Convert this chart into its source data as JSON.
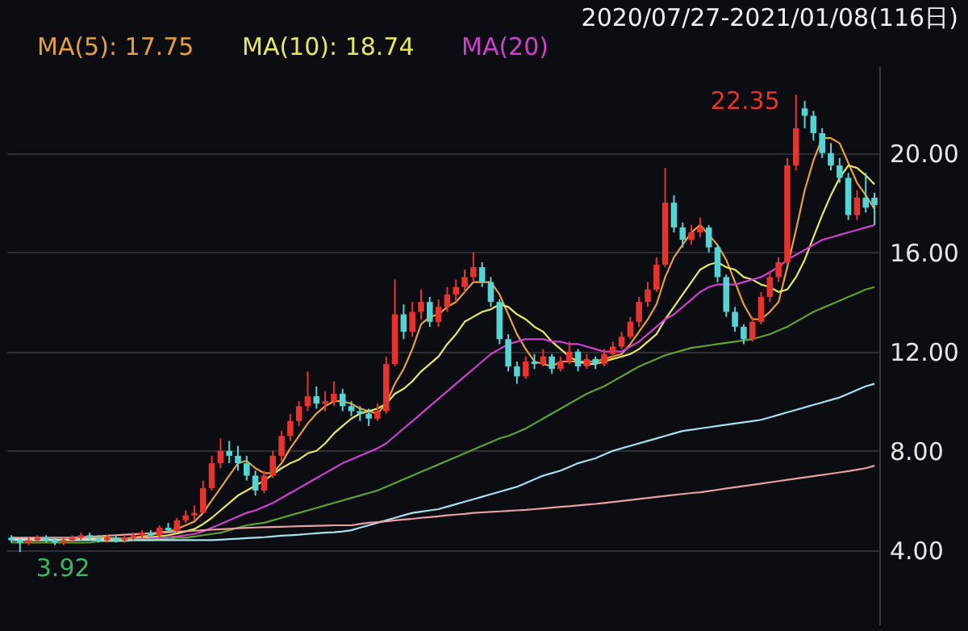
{
  "chart_data": {
    "type": "candlestick",
    "title": "2020/07/27-2021/01/08(116日)",
    "categories": [
      null,
      null,
      null,
      null,
      null,
      null,
      null,
      null,
      null,
      null,
      null,
      null,
      null,
      null,
      null,
      null,
      null,
      null,
      null,
      null,
      null,
      null,
      null,
      null,
      null,
      null,
      null,
      null,
      null,
      null,
      null,
      null,
      null,
      null,
      null,
      null,
      null,
      null,
      null,
      null,
      null,
      null,
      null,
      null,
      null,
      null,
      null,
      null,
      null,
      null,
      null,
      null,
      null,
      null,
      null,
      null,
      null,
      null,
      null,
      null,
      null,
      null,
      null,
      null,
      null,
      null,
      null,
      null,
      null,
      null,
      null,
      null,
      null,
      null,
      null,
      null,
      null,
      null,
      null,
      null,
      null,
      null,
      null,
      null,
      null,
      null,
      null,
      null,
      null,
      null,
      null,
      null,
      null,
      null,
      null,
      null,
      null,
      null,
      null,
      null
    ],
    "ohlc": [
      [
        4.5,
        4.6,
        4.3,
        4.4
      ],
      [
        4.4,
        4.5,
        3.92,
        4.3
      ],
      [
        4.3,
        4.5,
        4.2,
        4.4
      ],
      [
        4.4,
        4.6,
        4.3,
        4.5
      ],
      [
        4.5,
        4.6,
        4.3,
        4.4
      ],
      [
        4.4,
        4.5,
        4.2,
        4.3
      ],
      [
        4.3,
        4.5,
        4.2,
        4.4
      ],
      [
        4.4,
        4.6,
        4.3,
        4.5
      ],
      [
        4.5,
        4.7,
        4.4,
        4.6
      ],
      [
        4.6,
        4.7,
        4.4,
        4.5
      ],
      [
        4.5,
        4.6,
        4.3,
        4.4
      ],
      [
        4.4,
        4.6,
        4.3,
        4.5
      ],
      [
        4.5,
        4.6,
        4.3,
        4.4
      ],
      [
        4.4,
        4.6,
        4.3,
        4.5
      ],
      [
        4.5,
        4.7,
        4.4,
        4.6
      ],
      [
        4.6,
        4.8,
        4.5,
        4.7
      ],
      [
        4.7,
        4.8,
        4.5,
        4.6
      ],
      [
        4.6,
        5.0,
        4.5,
        4.9
      ],
      [
        4.9,
        5.1,
        4.7,
        4.8
      ],
      [
        4.8,
        5.3,
        4.7,
        5.2
      ],
      [
        5.2,
        5.6,
        5.1,
        5.4
      ],
      [
        5.4,
        5.8,
        5.2,
        5.5
      ],
      [
        5.5,
        6.8,
        5.5,
        6.5
      ],
      [
        6.5,
        7.8,
        6.4,
        7.5
      ],
      [
        7.5,
        8.5,
        7.3,
        8.0
      ],
      [
        8.0,
        8.4,
        7.5,
        7.8
      ],
      [
        7.8,
        8.2,
        7.2,
        7.5
      ],
      [
        7.5,
        7.8,
        6.8,
        7.0
      ],
      [
        7.0,
        7.2,
        6.2,
        6.4
      ],
      [
        6.4,
        7.2,
        6.3,
        7.0
      ],
      [
        7.0,
        8.0,
        6.9,
        7.8
      ],
      [
        7.8,
        8.8,
        7.6,
        8.6
      ],
      [
        8.6,
        9.5,
        8.4,
        9.2
      ],
      [
        9.2,
        10.0,
        9.0,
        9.8
      ],
      [
        9.8,
        11.2,
        9.6,
        10.2
      ],
      [
        10.2,
        10.6,
        9.7,
        9.9
      ],
      [
        9.9,
        10.4,
        9.6,
        10.0
      ],
      [
        10.0,
        10.8,
        9.8,
        10.3
      ],
      [
        10.3,
        10.5,
        9.6,
        9.8
      ],
      [
        9.8,
        10.0,
        9.4,
        9.6
      ],
      [
        9.6,
        9.8,
        9.2,
        9.5
      ],
      [
        9.5,
        9.7,
        9.0,
        9.3
      ],
      [
        9.3,
        9.9,
        9.2,
        9.6
      ],
      [
        9.6,
        11.8,
        9.5,
        11.5
      ],
      [
        11.5,
        14.9,
        11.4,
        13.5
      ],
      [
        13.5,
        13.9,
        12.5,
        12.8
      ],
      [
        12.8,
        14.0,
        12.6,
        13.6
      ],
      [
        13.6,
        14.5,
        13.3,
        14.0
      ],
      [
        14.0,
        14.2,
        13.0,
        13.2
      ],
      [
        13.2,
        14.1,
        13.0,
        13.8
      ],
      [
        13.8,
        14.6,
        13.6,
        14.3
      ],
      [
        14.3,
        14.9,
        14.0,
        14.6
      ],
      [
        14.6,
        15.3,
        14.4,
        15.0
      ],
      [
        15.0,
        16.0,
        14.8,
        15.4
      ],
      [
        15.4,
        15.6,
        14.6,
        14.8
      ],
      [
        14.8,
        15.0,
        13.8,
        14.0
      ],
      [
        14.0,
        14.1,
        12.3,
        12.5
      ],
      [
        12.5,
        12.7,
        11.2,
        11.4
      ],
      [
        11.4,
        11.6,
        10.7,
        11.0
      ],
      [
        11.0,
        11.8,
        10.9,
        11.6
      ],
      [
        11.6,
        11.9,
        11.3,
        11.5
      ],
      [
        11.5,
        12.1,
        11.4,
        11.8
      ],
      [
        11.8,
        11.9,
        11.1,
        11.3
      ],
      [
        11.3,
        11.8,
        11.2,
        11.6
      ],
      [
        11.6,
        12.4,
        11.5,
        12.0
      ],
      [
        12.0,
        12.1,
        11.2,
        11.4
      ],
      [
        11.4,
        11.9,
        11.3,
        11.7
      ],
      [
        11.7,
        11.8,
        11.3,
        11.5
      ],
      [
        11.5,
        12.1,
        11.4,
        11.9
      ],
      [
        11.9,
        12.4,
        11.8,
        12.2
      ],
      [
        12.2,
        12.8,
        12.1,
        12.6
      ],
      [
        12.6,
        13.4,
        12.5,
        13.2
      ],
      [
        13.2,
        14.2,
        13.0,
        14.0
      ],
      [
        14.0,
        14.8,
        13.8,
        14.5
      ],
      [
        14.5,
        15.8,
        14.4,
        15.5
      ],
      [
        15.5,
        19.4,
        15.4,
        18.0
      ],
      [
        18.0,
        18.3,
        16.8,
        17.0
      ],
      [
        17.0,
        17.2,
        16.2,
        16.5
      ],
      [
        16.5,
        17.1,
        16.3,
        16.8
      ],
      [
        16.8,
        17.4,
        16.6,
        17.0
      ],
      [
        17.0,
        17.1,
        16.0,
        16.2
      ],
      [
        16.2,
        16.3,
        14.8,
        15.0
      ],
      [
        15.0,
        15.1,
        13.4,
        13.6
      ],
      [
        13.6,
        13.8,
        12.8,
        13.0
      ],
      [
        13.0,
        13.1,
        12.3,
        12.5
      ],
      [
        12.5,
        13.4,
        12.4,
        13.2
      ],
      [
        13.2,
        14.4,
        13.1,
        14.2
      ],
      [
        14.2,
        15.2,
        14.0,
        15.0
      ],
      [
        15.0,
        15.8,
        14.8,
        15.6
      ],
      [
        15.6,
        19.8,
        15.5,
        19.5
      ],
      [
        19.5,
        22.35,
        19.3,
        21.0
      ],
      [
        21.8,
        22.1,
        21.0,
        21.5
      ],
      [
        21.5,
        21.7,
        20.5,
        20.8
      ],
      [
        20.8,
        21.0,
        19.8,
        20.0
      ],
      [
        20.0,
        20.4,
        19.3,
        19.5
      ],
      [
        19.5,
        19.8,
        18.8,
        19.0
      ],
      [
        19.0,
        19.2,
        17.3,
        17.5
      ],
      [
        17.5,
        18.5,
        17.3,
        18.2
      ],
      [
        18.2,
        19.2,
        17.6,
        17.8
      ],
      [
        18.2,
        18.4,
        17.1,
        17.9
      ]
    ],
    "series": [
      {
        "name": "MA(5): 17.75",
        "type": "line",
        "color": "#e8a03a",
        "values": [
          4.5,
          4.45,
          4.4,
          4.4,
          4.4,
          4.4,
          4.4,
          4.4,
          4.45,
          4.5,
          4.5,
          4.5,
          4.45,
          4.45,
          4.5,
          4.55,
          4.6,
          4.7,
          4.75,
          4.85,
          5.0,
          5.15,
          5.5,
          6.0,
          6.5,
          7.0,
          7.5,
          7.6,
          7.3,
          7.1,
          7.1,
          7.5,
          8.1,
          8.6,
          9.1,
          9.5,
          9.8,
          10.0,
          10.0,
          9.9,
          9.7,
          9.6,
          9.5,
          9.9,
          10.7,
          11.3,
          12.1,
          13.1,
          13.4,
          13.5,
          13.8,
          14.0,
          14.4,
          14.8,
          14.8,
          14.8,
          14.3,
          13.5,
          12.7,
          12.1,
          11.6,
          11.5,
          11.4,
          11.6,
          11.6,
          11.6,
          11.6,
          11.6,
          11.7,
          11.8,
          11.9,
          12.3,
          12.8,
          13.3,
          13.9,
          15.0,
          15.8,
          16.3,
          16.8,
          17.1,
          16.7,
          16.3,
          15.7,
          14.8,
          13.9,
          13.3,
          13.3,
          13.6,
          14.0,
          15.4,
          16.9,
          18.5,
          19.7,
          20.6,
          20.6,
          20.4,
          19.6,
          18.8,
          18.3,
          17.75
        ]
      },
      {
        "name": "MA(10): 18.74",
        "type": "line",
        "color": "#e8e860",
        "values": [
          4.45,
          4.45,
          4.45,
          4.44,
          4.43,
          4.42,
          4.42,
          4.42,
          4.43,
          4.44,
          4.45,
          4.46,
          4.46,
          4.47,
          4.48,
          4.5,
          4.52,
          4.56,
          4.6,
          4.67,
          4.75,
          4.85,
          5.05,
          5.3,
          5.6,
          5.9,
          6.2,
          6.4,
          6.6,
          6.8,
          7.05,
          7.3,
          7.5,
          7.65,
          7.9,
          8.0,
          8.3,
          8.7,
          9.0,
          9.3,
          9.5,
          9.6,
          9.7,
          9.9,
          10.3,
          10.5,
          10.8,
          11.2,
          11.5,
          11.8,
          12.3,
          12.7,
          13.2,
          13.4,
          13.6,
          13.7,
          13.9,
          13.8,
          13.5,
          13.3,
          13.0,
          12.8,
          12.4,
          12.1,
          11.8,
          11.6,
          11.5,
          11.5,
          11.6,
          11.7,
          11.8,
          11.9,
          12.1,
          12.4,
          12.7,
          13.3,
          13.8,
          14.3,
          14.8,
          15.3,
          15.5,
          15.6,
          15.4,
          15.3,
          15.0,
          14.9,
          14.7,
          14.6,
          14.4,
          14.5,
          15.0,
          15.7,
          16.6,
          17.5,
          18.3,
          19.0,
          19.5,
          19.4,
          19.1,
          18.74
        ]
      },
      {
        "name": "MA(20)",
        "type": "line",
        "color": "#d040d0",
        "values": [
          null,
          null,
          null,
          null,
          null,
          null,
          null,
          null,
          null,
          null,
          null,
          4.42,
          4.43,
          4.44,
          4.45,
          4.46,
          4.47,
          4.49,
          4.52,
          4.55,
          4.6,
          4.65,
          4.75,
          4.9,
          5.05,
          5.2,
          5.35,
          5.5,
          5.6,
          5.75,
          5.9,
          6.1,
          6.3,
          6.5,
          6.7,
          6.9,
          7.1,
          7.3,
          7.5,
          7.65,
          7.8,
          7.95,
          8.1,
          8.3,
          8.6,
          8.9,
          9.2,
          9.5,
          9.8,
          10.1,
          10.4,
          10.7,
          11.0,
          11.3,
          11.6,
          11.9,
          12.1,
          12.3,
          12.4,
          12.5,
          12.5,
          12.5,
          12.4,
          12.4,
          12.3,
          12.3,
          12.2,
          12.1,
          12.0,
          12.0,
          12.0,
          12.2,
          12.4,
          12.7,
          13.0,
          13.3,
          13.5,
          13.8,
          14.1,
          14.4,
          14.6,
          14.7,
          14.7,
          14.7,
          14.8,
          14.9,
          15.0,
          15.2,
          15.4,
          15.7,
          15.9,
          16.1,
          16.3,
          16.5,
          16.6,
          16.7,
          16.8,
          16.9,
          17.0,
          17.1
        ]
      },
      {
        "type": "line",
        "color": "#60a030",
        "values": [
          4.3,
          4.3,
          4.3,
          4.3,
          4.3,
          4.3,
          4.3,
          4.3,
          4.3,
          4.3,
          4.35,
          4.35,
          4.35,
          4.35,
          4.4,
          4.4,
          4.4,
          4.45,
          4.45,
          4.5,
          4.5,
          4.55,
          4.6,
          4.65,
          4.7,
          4.8,
          4.9,
          5.0,
          5.05,
          5.1,
          5.2,
          5.3,
          5.4,
          5.5,
          5.6,
          5.7,
          5.8,
          5.9,
          6.0,
          6.1,
          6.2,
          6.3,
          6.4,
          6.55,
          6.7,
          6.85,
          7.0,
          7.15,
          7.3,
          7.45,
          7.6,
          7.75,
          7.9,
          8.05,
          8.2,
          8.35,
          8.5,
          8.6,
          8.75,
          8.9,
          9.1,
          9.3,
          9.5,
          9.7,
          9.9,
          10.1,
          10.3,
          10.45,
          10.6,
          10.8,
          11.0,
          11.2,
          11.4,
          11.55,
          11.7,
          11.85,
          11.95,
          12.05,
          12.15,
          12.2,
          12.25,
          12.3,
          12.35,
          12.4,
          12.45,
          12.5,
          12.6,
          12.7,
          12.85,
          13.0,
          13.2,
          13.4,
          13.6,
          13.75,
          13.9,
          14.05,
          14.2,
          14.35,
          14.5,
          14.6
        ]
      },
      {
        "type": "line",
        "color": "#a8e0f0",
        "values": [
          4.4,
          4.4,
          4.4,
          4.4,
          4.4,
          4.4,
          4.4,
          4.4,
          4.4,
          4.4,
          4.4,
          4.4,
          4.4,
          4.4,
          4.4,
          4.4,
          4.4,
          4.4,
          4.4,
          4.4,
          4.4,
          4.4,
          4.4,
          4.4,
          4.42,
          4.44,
          4.46,
          4.48,
          4.5,
          4.52,
          4.55,
          4.58,
          4.6,
          4.62,
          4.65,
          4.68,
          4.7,
          4.72,
          4.75,
          4.8,
          4.9,
          5.0,
          5.1,
          5.2,
          5.3,
          5.4,
          5.5,
          5.55,
          5.6,
          5.65,
          5.75,
          5.85,
          5.95,
          6.05,
          6.15,
          6.25,
          6.35,
          6.45,
          6.55,
          6.7,
          6.85,
          7.0,
          7.1,
          7.2,
          7.35,
          7.5,
          7.6,
          7.7,
          7.85,
          8.0,
          8.1,
          8.2,
          8.3,
          8.4,
          8.5,
          8.6,
          8.7,
          8.8,
          8.85,
          8.9,
          8.95,
          9.0,
          9.05,
          9.1,
          9.15,
          9.2,
          9.25,
          9.35,
          9.45,
          9.55,
          9.65,
          9.75,
          9.85,
          9.95,
          10.05,
          10.15,
          10.3,
          10.45,
          10.6,
          10.7
        ]
      },
      {
        "type": "line",
        "color": "#e8a0a0",
        "values": [
          4.5,
          4.5,
          4.5,
          4.5,
          4.5,
          4.5,
          4.5,
          4.5,
          4.52,
          4.54,
          4.56,
          4.58,
          4.6,
          4.62,
          4.64,
          4.66,
          4.68,
          4.7,
          4.72,
          4.74,
          4.76,
          4.78,
          4.8,
          4.82,
          4.84,
          4.86,
          4.88,
          4.9,
          4.91,
          4.92,
          4.93,
          4.94,
          4.95,
          4.96,
          4.97,
          4.98,
          4.99,
          5.0,
          5.0,
          5.0,
          5.05,
          5.1,
          5.13,
          5.16,
          5.2,
          5.23,
          5.26,
          5.3,
          5.33,
          5.36,
          5.4,
          5.43,
          5.46,
          5.5,
          5.52,
          5.54,
          5.56,
          5.58,
          5.6,
          5.62,
          5.65,
          5.68,
          5.71,
          5.74,
          5.77,
          5.8,
          5.83,
          5.86,
          5.9,
          5.94,
          5.98,
          6.02,
          6.06,
          6.1,
          6.14,
          6.18,
          6.22,
          6.26,
          6.3,
          6.33,
          6.38,
          6.43,
          6.48,
          6.53,
          6.58,
          6.63,
          6.68,
          6.73,
          6.78,
          6.83,
          6.88,
          6.93,
          6.98,
          7.03,
          7.08,
          7.13,
          7.18,
          7.24,
          7.3,
          7.4
        ]
      }
    ],
    "annotations": [
      "22.35",
      "3.92"
    ],
    "ylim": [
      1,
      23.5
    ],
    "yticks": [
      {
        "value": 4,
        "label": "4.00"
      },
      {
        "value": 8,
        "label": "8.00"
      },
      {
        "value": 12,
        "label": "12.00"
      },
      {
        "value": 16,
        "label": "16.00"
      },
      {
        "value": 20,
        "label": "20.00"
      }
    ],
    "grid": "y",
    "legend": "top left",
    "tick_labels": "y"
  }
}
